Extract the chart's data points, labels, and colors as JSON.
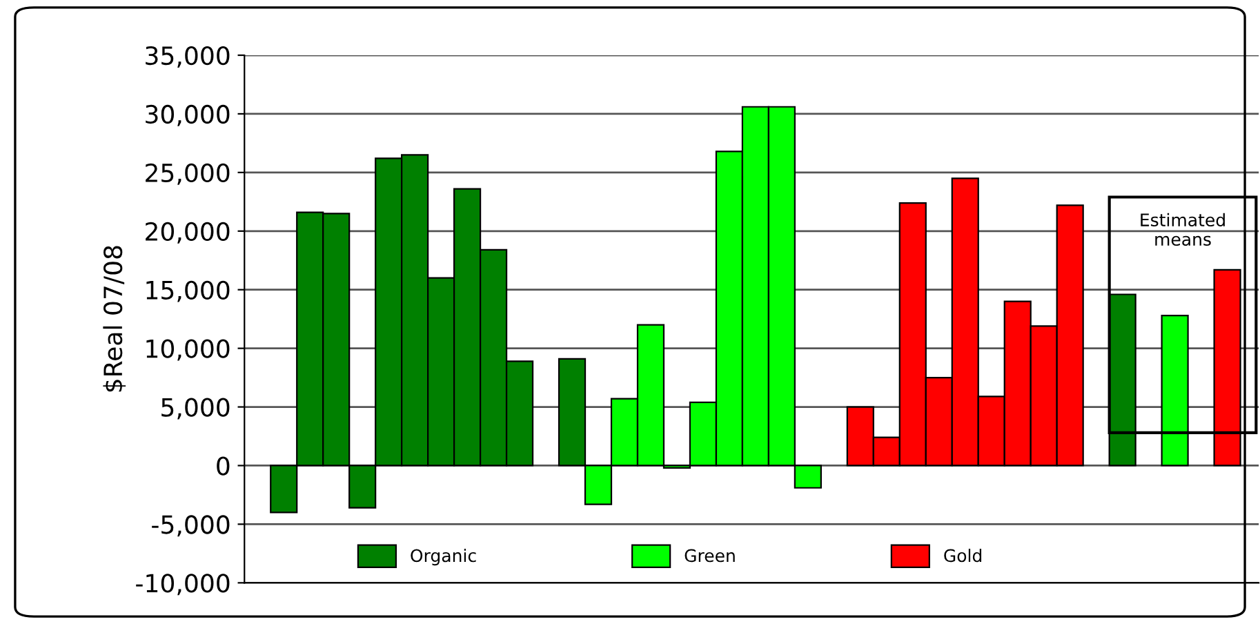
{
  "chart_data": {
    "type": "bar",
    "ylabel": "$Real 07/08",
    "categories": [
      null,
      null,
      null,
      null,
      null,
      null,
      null,
      null,
      null,
      null,
      null,
      null,
      null,
      null,
      null,
      null,
      null,
      null,
      null,
      null,
      null,
      null,
      null,
      null,
      null,
      null,
      null,
      null,
      null,
      null,
      null,
      null,
      null,
      null,
      null,
      null,
      null,
      null,
      null
    ],
    "series": [
      {
        "name": "Organic",
        "color": "#008000",
        "values": [
          null,
          -4000,
          21600,
          21500,
          -3600,
          26200,
          26500,
          16000,
          23600,
          18400,
          8900,
          null,
          9100,
          null,
          null,
          null,
          null,
          null,
          null,
          null,
          null,
          null,
          null,
          null,
          null,
          null,
          null,
          null,
          null,
          null,
          null,
          null,
          null,
          14600,
          null,
          null,
          null,
          null,
          null
        ]
      },
      {
        "name": "Green",
        "color": "#00ff00",
        "values": [
          null,
          null,
          null,
          null,
          null,
          null,
          null,
          null,
          null,
          null,
          null,
          null,
          null,
          -3300,
          5700,
          12000,
          -200,
          5400,
          26800,
          30600,
          30600,
          -1900,
          null,
          null,
          null,
          null,
          null,
          null,
          null,
          null,
          null,
          null,
          null,
          null,
          null,
          12800,
          null,
          null,
          null
        ]
      },
      {
        "name": "Gold",
        "color": "#ff0000",
        "values": [
          null,
          null,
          null,
          null,
          null,
          null,
          null,
          null,
          null,
          null,
          null,
          null,
          null,
          null,
          null,
          null,
          null,
          null,
          null,
          null,
          null,
          null,
          null,
          5000,
          2400,
          22400,
          7500,
          24500,
          5900,
          14000,
          11900,
          22200,
          null,
          null,
          null,
          null,
          null,
          16700,
          null
        ]
      }
    ],
    "ylim": [
      -10000,
      35000
    ],
    "yticks": [
      {
        "value": -10000,
        "label": "-10,000"
      },
      {
        "value": -5000,
        "label": "-5,000"
      },
      {
        "value": 0,
        "label": "0"
      },
      {
        "value": 5000,
        "label": "5,000"
      },
      {
        "value": 10000,
        "label": "10,000"
      },
      {
        "value": 15000,
        "label": "15,000"
      },
      {
        "value": 20000,
        "label": "20,000"
      },
      {
        "value": 25000,
        "label": "25,000"
      },
      {
        "value": 30000,
        "label": "30,000"
      },
      {
        "value": 35000,
        "label": "35,000"
      }
    ],
    "grid": "y",
    "legend": "bottom",
    "annotations": [
      "Estimated\nmeans"
    ]
  }
}
